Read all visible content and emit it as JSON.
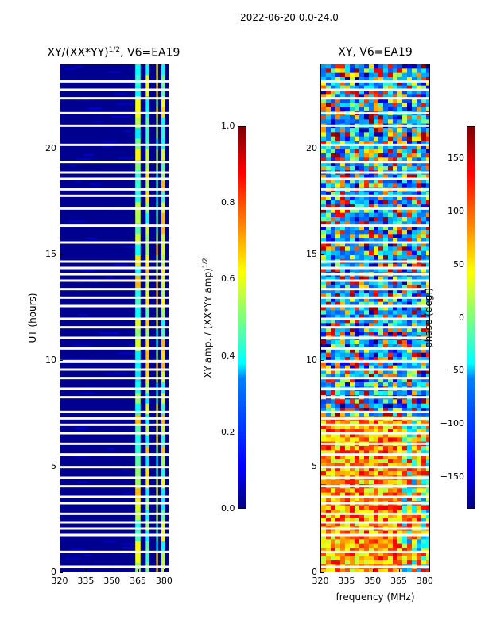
{
  "suptitle": "2022-06-20 0.0-24.0",
  "colors": {
    "background": "#ffffff",
    "deep_blue": "#00008f",
    "stripe": "#ffffff"
  },
  "chart_data": [
    {
      "type": "heatmap",
      "title": "XY/(XX*YY)",
      "title_superscript": "1/2",
      "title_suffix": ", V6=EA19",
      "xlabel": "",
      "ylabel": "UT (hours)",
      "xlim": [
        320,
        383
      ],
      "ylim": [
        0,
        24
      ],
      "x_ticks": [
        320,
        335,
        350,
        365,
        380
      ],
      "y_ticks": [
        0,
        5,
        10,
        15,
        20
      ],
      "bright_bands_mhz": [
        [
          363,
          366
        ],
        [
          369,
          371
        ],
        [
          375,
          376
        ],
        [
          378,
          380
        ]
      ],
      "colorbar": {
        "label": "XY amp. / (XX*YY amp)",
        "label_superscript": "1/2",
        "range": [
          0.0,
          1.0
        ],
        "ticks": [
          "0.0",
          "0.2",
          "0.4",
          "0.6",
          "0.8",
          "1.0"
        ]
      }
    },
    {
      "type": "heatmap",
      "title": "XY, V6=EA19",
      "xlabel": "frequency (MHz)",
      "ylabel": "",
      "xlim": [
        320,
        383
      ],
      "ylim": [
        0,
        24
      ],
      "x_ticks": [
        320,
        335,
        350,
        365,
        380
      ],
      "y_ticks": [
        0,
        5,
        10,
        15,
        20
      ],
      "colorbar": {
        "label": "phase (deg.)",
        "range": [
          -180,
          180
        ],
        "ticks": [
          "150",
          "100",
          "50",
          "0",
          "−50",
          "−100",
          "−150"
        ]
      }
    }
  ],
  "flagged_gaps_hours": [
    0.3,
    1.0,
    1.8,
    2.1,
    2.4,
    2.8,
    3.3,
    3.6,
    4.1,
    4.5,
    5.0,
    5.6,
    6.1,
    6.6,
    7.0,
    7.3,
    7.6,
    8.3,
    8.7,
    9.2,
    9.6,
    10.0,
    10.6,
    11.1,
    11.6,
    12.0,
    12.6,
    13.0,
    13.4,
    13.8,
    14.1,
    14.4,
    14.7,
    15.6,
    16.4,
    17.2,
    17.8,
    18.1,
    18.6,
    18.9,
    19.4,
    20.2,
    21.1,
    21.7,
    22.4,
    22.8,
    23.2
  ]
}
